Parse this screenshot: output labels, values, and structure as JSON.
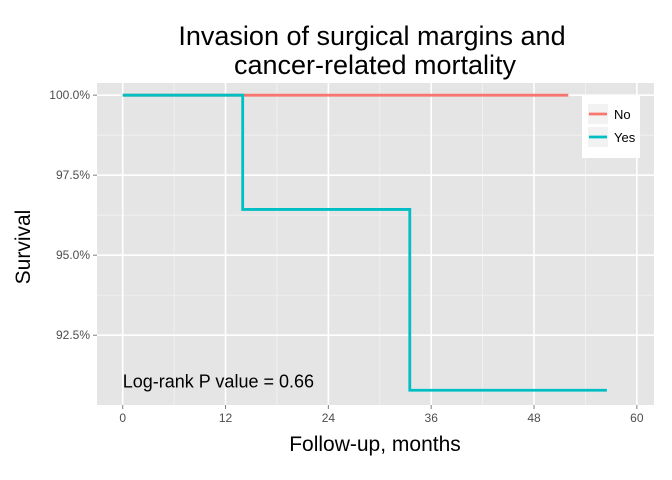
{
  "chart_data": {
    "type": "line",
    "step": true,
    "title": [
      "Invasion of surgical margins and",
      "cancer-related mortality"
    ],
    "xlabel": "Follow-up, months",
    "ylabel": "Survival",
    "xlim": [
      -3,
      62
    ],
    "ylim": [
      90.32,
      100.38
    ],
    "x_ticks": [
      0,
      12,
      24,
      36,
      48,
      60
    ],
    "x_tick_labels": [
      "0",
      "12",
      "24",
      "36",
      "48",
      "60"
    ],
    "y_ticks": [
      92.5,
      95.0,
      97.5,
      100.0
    ],
    "y_tick_labels": [
      "92.5%",
      "95.0%",
      "97.5%",
      "100.0%"
    ],
    "grid": true,
    "legend_position": "top-right",
    "annotation": {
      "text": "Log-rank P value = 0.66",
      "x": 0,
      "y": 90.9
    },
    "series": [
      {
        "name": "No",
        "color": "#f8766d",
        "x": [
          0,
          52
        ],
        "y": [
          100.0,
          100.0
        ]
      },
      {
        "name": "Yes",
        "color": "#00bfc4",
        "x": [
          0,
          14,
          33.5,
          56.5
        ],
        "y": [
          100.0,
          96.43,
          90.78,
          90.78
        ]
      }
    ],
    "colors": {
      "panel": "#e5e5e5",
      "grid_major": "#ffffff",
      "grid_minor": "#f2f2f2",
      "tick": "#7f7f7f"
    }
  }
}
